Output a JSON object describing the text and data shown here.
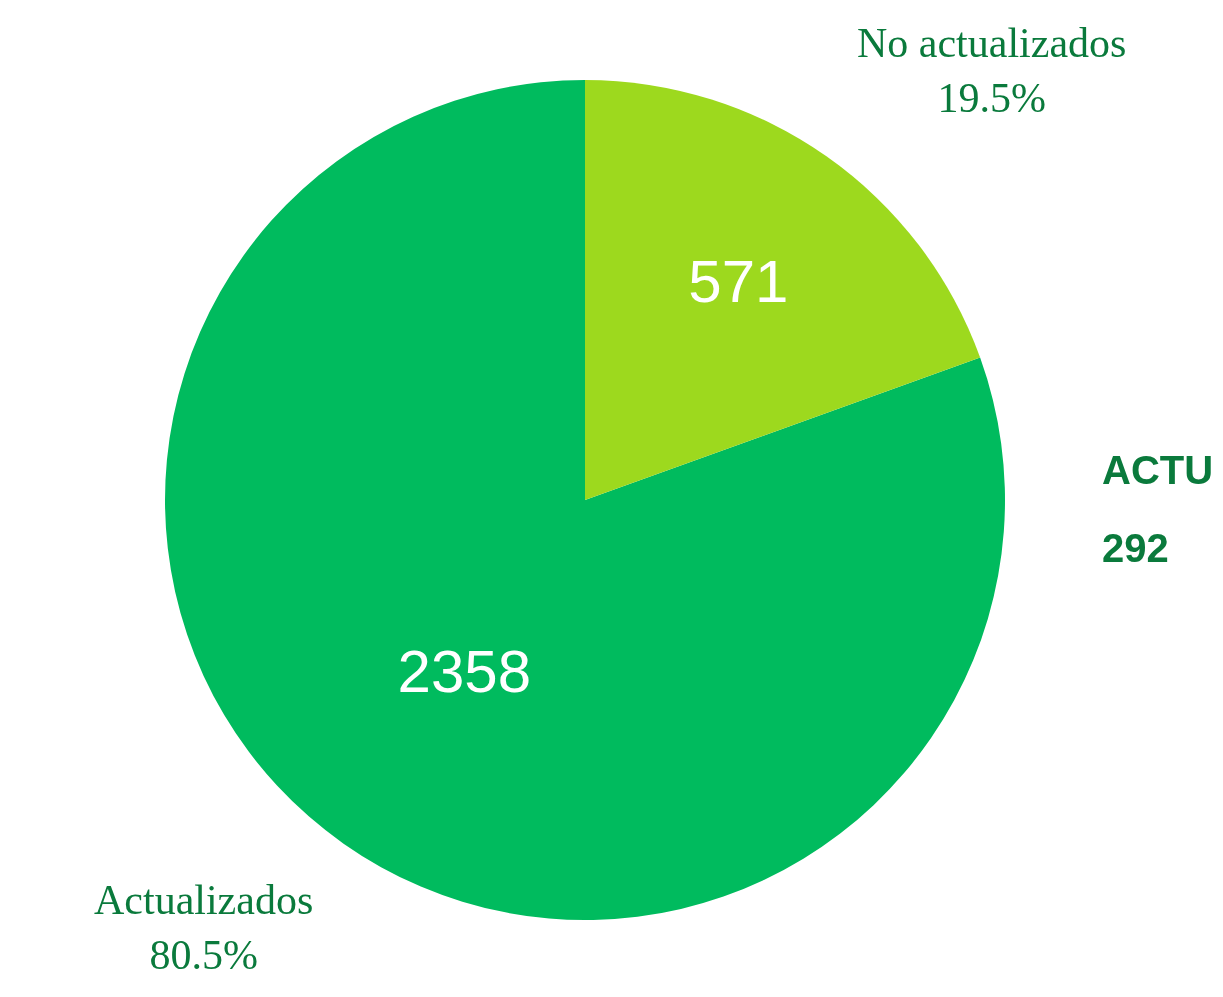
{
  "chart_data": {
    "type": "pie",
    "categories": [
      "Actualizados",
      "No actualizados"
    ],
    "values": [
      2358,
      571
    ],
    "colors": [
      "#00bb5e",
      "#9dd91e"
    ],
    "data_labels": true,
    "annotations": [
      "80.5%",
      "19.5%",
      "ACTU",
      "292"
    ]
  }
}
